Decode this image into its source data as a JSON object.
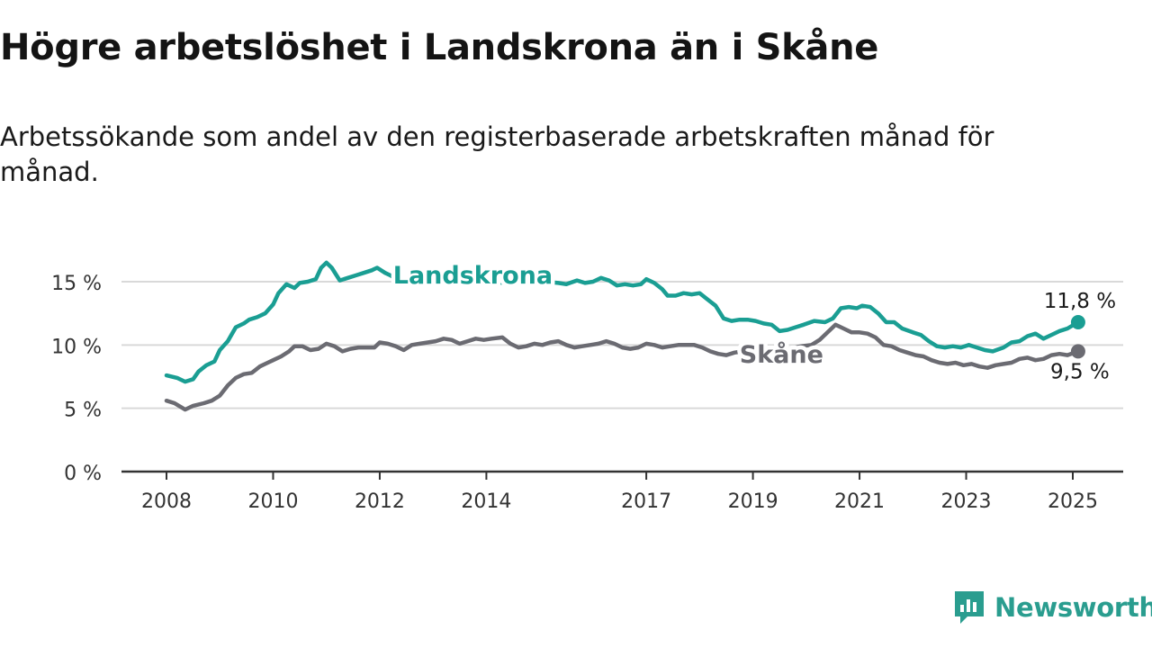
{
  "header": {
    "title": "Högre arbetslöshet i Landskrona än i Skåne",
    "subtitle": "Arbetssökande som andel av den registerbaserade arbetskraften månad för månad."
  },
  "brand": {
    "name": "Newsworthy",
    "icon": "newsworthy-logo-icon",
    "color": "#2a9d8f"
  },
  "chart_data": {
    "type": "line",
    "title": "Högre arbetslöshet i Landskrona än i Skåne",
    "subtitle": "Arbetssökande som andel av den registerbaserade arbetskraften månad för månad.",
    "xlabel": "",
    "ylabel": "",
    "x_ticks": [
      2008,
      2010,
      2012,
      2014,
      2017,
      2019,
      2021,
      2023,
      2025
    ],
    "y_ticks": [
      0,
      5,
      10,
      15
    ],
    "y_tick_labels": [
      "0 %",
      "5 %",
      "10 %",
      "15 %"
    ],
    "xlim": [
      2007.2,
      2026.0
    ],
    "ylim": [
      0,
      17.5
    ],
    "grid": true,
    "legend": "inline labels on lines",
    "series": [
      {
        "name": "Landskrona",
        "color": "#1a9e93",
        "label_position": "above-line-2013",
        "end_label": "11,8 %",
        "points": [
          [
            2008.0,
            7.6
          ],
          [
            2008.2,
            7.4
          ],
          [
            2008.35,
            7.1
          ],
          [
            2008.5,
            7.3
          ],
          [
            2008.6,
            7.9
          ],
          [
            2008.75,
            8.4
          ],
          [
            2008.9,
            8.7
          ],
          [
            2009.0,
            9.6
          ],
          [
            2009.15,
            10.3
          ],
          [
            2009.3,
            11.4
          ],
          [
            2009.45,
            11.7
          ],
          [
            2009.55,
            12.0
          ],
          [
            2009.7,
            12.2
          ],
          [
            2009.85,
            12.5
          ],
          [
            2010.0,
            13.2
          ],
          [
            2010.1,
            14.1
          ],
          [
            2010.25,
            14.8
          ],
          [
            2010.4,
            14.5
          ],
          [
            2010.5,
            14.9
          ],
          [
            2010.65,
            15.0
          ],
          [
            2010.8,
            15.2
          ],
          [
            2010.9,
            16.1
          ],
          [
            2011.0,
            16.5
          ],
          [
            2011.1,
            16.1
          ],
          [
            2011.25,
            15.1
          ],
          [
            2011.4,
            15.3
          ],
          [
            2011.55,
            15.5
          ],
          [
            2011.7,
            15.7
          ],
          [
            2011.85,
            15.9
          ],
          [
            2011.95,
            16.1
          ],
          [
            2012.1,
            15.7
          ],
          [
            2012.2,
            15.5
          ],
          [
            2012.35,
            15.1
          ],
          [
            2012.5,
            14.8
          ],
          [
            2012.7,
            14.9
          ],
          [
            2012.9,
            15.1
          ],
          [
            2013.05,
            14.9
          ],
          [
            2013.3,
            14.9
          ],
          [
            2013.6,
            15.0
          ],
          [
            2013.9,
            15.1
          ],
          [
            2014.2,
            14.9
          ],
          [
            2014.5,
            15.0
          ],
          [
            2014.8,
            15.1
          ],
          [
            2015.1,
            15.0
          ],
          [
            2015.35,
            14.9
          ],
          [
            2015.5,
            14.8
          ],
          [
            2015.7,
            15.1
          ],
          [
            2015.85,
            14.9
          ],
          [
            2016.0,
            15.0
          ],
          [
            2016.15,
            15.3
          ],
          [
            2016.3,
            15.1
          ],
          [
            2016.45,
            14.7
          ],
          [
            2016.6,
            14.8
          ],
          [
            2016.75,
            14.7
          ],
          [
            2016.9,
            14.8
          ],
          [
            2017.0,
            15.2
          ],
          [
            2017.15,
            14.9
          ],
          [
            2017.3,
            14.4
          ],
          [
            2017.4,
            13.9
          ],
          [
            2017.55,
            13.9
          ],
          [
            2017.7,
            14.1
          ],
          [
            2017.85,
            14.0
          ],
          [
            2018.0,
            14.1
          ],
          [
            2018.15,
            13.6
          ],
          [
            2018.3,
            13.1
          ],
          [
            2018.45,
            12.1
          ],
          [
            2018.6,
            11.9
          ],
          [
            2018.75,
            12.0
          ],
          [
            2018.9,
            12.0
          ],
          [
            2019.05,
            11.9
          ],
          [
            2019.2,
            11.7
          ],
          [
            2019.35,
            11.6
          ],
          [
            2019.5,
            11.1
          ],
          [
            2019.65,
            11.2
          ],
          [
            2019.8,
            11.4
          ],
          [
            2019.95,
            11.6
          ],
          [
            2020.15,
            11.9
          ],
          [
            2020.35,
            11.8
          ],
          [
            2020.5,
            12.1
          ],
          [
            2020.65,
            12.9
          ],
          [
            2020.8,
            13.0
          ],
          [
            2020.95,
            12.9
          ],
          [
            2021.05,
            13.1
          ],
          [
            2021.2,
            13.0
          ],
          [
            2021.35,
            12.5
          ],
          [
            2021.5,
            11.8
          ],
          [
            2021.65,
            11.8
          ],
          [
            2021.8,
            11.3
          ],
          [
            2022.0,
            11.0
          ],
          [
            2022.15,
            10.8
          ],
          [
            2022.3,
            10.3
          ],
          [
            2022.45,
            9.9
          ],
          [
            2022.6,
            9.8
          ],
          [
            2022.75,
            9.9
          ],
          [
            2022.9,
            9.8
          ],
          [
            2023.05,
            10.0
          ],
          [
            2023.2,
            9.8
          ],
          [
            2023.35,
            9.6
          ],
          [
            2023.5,
            9.5
          ],
          [
            2023.7,
            9.8
          ],
          [
            2023.85,
            10.2
          ],
          [
            2024.0,
            10.3
          ],
          [
            2024.15,
            10.7
          ],
          [
            2024.3,
            10.9
          ],
          [
            2024.45,
            10.5
          ],
          [
            2024.6,
            10.8
          ],
          [
            2024.75,
            11.1
          ],
          [
            2024.9,
            11.3
          ],
          [
            2025.1,
            11.8
          ]
        ]
      },
      {
        "name": "Skåne",
        "color": "#6b6b72",
        "label_position": "above-line-2019",
        "end_label": "9,5 %",
        "points": [
          [
            2008.0,
            5.6
          ],
          [
            2008.15,
            5.4
          ],
          [
            2008.35,
            4.9
          ],
          [
            2008.5,
            5.2
          ],
          [
            2008.7,
            5.4
          ],
          [
            2008.85,
            5.6
          ],
          [
            2009.0,
            6.0
          ],
          [
            2009.15,
            6.8
          ],
          [
            2009.3,
            7.4
          ],
          [
            2009.45,
            7.7
          ],
          [
            2009.6,
            7.8
          ],
          [
            2009.75,
            8.3
          ],
          [
            2009.9,
            8.6
          ],
          [
            2010.0,
            8.8
          ],
          [
            2010.15,
            9.1
          ],
          [
            2010.3,
            9.5
          ],
          [
            2010.4,
            9.9
          ],
          [
            2010.55,
            9.9
          ],
          [
            2010.7,
            9.6
          ],
          [
            2010.85,
            9.7
          ],
          [
            2011.0,
            10.1
          ],
          [
            2011.15,
            9.9
          ],
          [
            2011.3,
            9.5
          ],
          [
            2011.45,
            9.7
          ],
          [
            2011.6,
            9.8
          ],
          [
            2011.75,
            9.8
          ],
          [
            2011.9,
            9.8
          ],
          [
            2012.0,
            10.2
          ],
          [
            2012.15,
            10.1
          ],
          [
            2012.3,
            9.9
          ],
          [
            2012.45,
            9.6
          ],
          [
            2012.6,
            10.0
          ],
          [
            2012.75,
            10.1
          ],
          [
            2012.9,
            10.2
          ],
          [
            2013.05,
            10.3
          ],
          [
            2013.2,
            10.5
          ],
          [
            2013.35,
            10.4
          ],
          [
            2013.5,
            10.1
          ],
          [
            2013.65,
            10.3
          ],
          [
            2013.8,
            10.5
          ],
          [
            2013.95,
            10.4
          ],
          [
            2014.1,
            10.5
          ],
          [
            2014.3,
            10.6
          ],
          [
            2014.45,
            10.1
          ],
          [
            2014.6,
            9.8
          ],
          [
            2014.75,
            9.9
          ],
          [
            2014.9,
            10.1
          ],
          [
            2015.05,
            10.0
          ],
          [
            2015.2,
            10.2
          ],
          [
            2015.35,
            10.3
          ],
          [
            2015.5,
            10.0
          ],
          [
            2015.65,
            9.8
          ],
          [
            2015.8,
            9.9
          ],
          [
            2015.95,
            10.0
          ],
          [
            2016.1,
            10.1
          ],
          [
            2016.25,
            10.3
          ],
          [
            2016.4,
            10.1
          ],
          [
            2016.55,
            9.8
          ],
          [
            2016.7,
            9.7
          ],
          [
            2016.85,
            9.8
          ],
          [
            2017.0,
            10.1
          ],
          [
            2017.15,
            10.0
          ],
          [
            2017.3,
            9.8
          ],
          [
            2017.45,
            9.9
          ],
          [
            2017.6,
            10.0
          ],
          [
            2017.75,
            10.0
          ],
          [
            2017.9,
            10.0
          ],
          [
            2018.05,
            9.8
          ],
          [
            2018.2,
            9.5
          ],
          [
            2018.35,
            9.3
          ],
          [
            2018.5,
            9.2
          ],
          [
            2018.65,
            9.4
          ],
          [
            2018.8,
            9.5
          ],
          [
            2018.95,
            9.4
          ],
          [
            2019.1,
            9.5
          ],
          [
            2019.3,
            9.6
          ],
          [
            2019.5,
            9.6
          ],
          [
            2019.7,
            9.7
          ],
          [
            2019.9,
            9.9
          ],
          [
            2020.1,
            10.0
          ],
          [
            2020.25,
            10.4
          ],
          [
            2020.4,
            11.0
          ],
          [
            2020.55,
            11.6
          ],
          [
            2020.7,
            11.3
          ],
          [
            2020.85,
            11.0
          ],
          [
            2021.0,
            11.0
          ],
          [
            2021.15,
            10.9
          ],
          [
            2021.3,
            10.6
          ],
          [
            2021.45,
            10.0
          ],
          [
            2021.6,
            9.9
          ],
          [
            2021.75,
            9.6
          ],
          [
            2021.9,
            9.4
          ],
          [
            2022.05,
            9.2
          ],
          [
            2022.2,
            9.1
          ],
          [
            2022.35,
            8.8
          ],
          [
            2022.5,
            8.6
          ],
          [
            2022.65,
            8.5
          ],
          [
            2022.8,
            8.6
          ],
          [
            2022.95,
            8.4
          ],
          [
            2023.1,
            8.5
          ],
          [
            2023.25,
            8.3
          ],
          [
            2023.4,
            8.2
          ],
          [
            2023.55,
            8.4
          ],
          [
            2023.7,
            8.5
          ],
          [
            2023.85,
            8.6
          ],
          [
            2024.0,
            8.9
          ],
          [
            2024.15,
            9.0
          ],
          [
            2024.3,
            8.8
          ],
          [
            2024.45,
            8.9
          ],
          [
            2024.6,
            9.2
          ],
          [
            2024.75,
            9.3
          ],
          [
            2024.9,
            9.2
          ],
          [
            2025.1,
            9.5
          ]
        ]
      }
    ]
  }
}
